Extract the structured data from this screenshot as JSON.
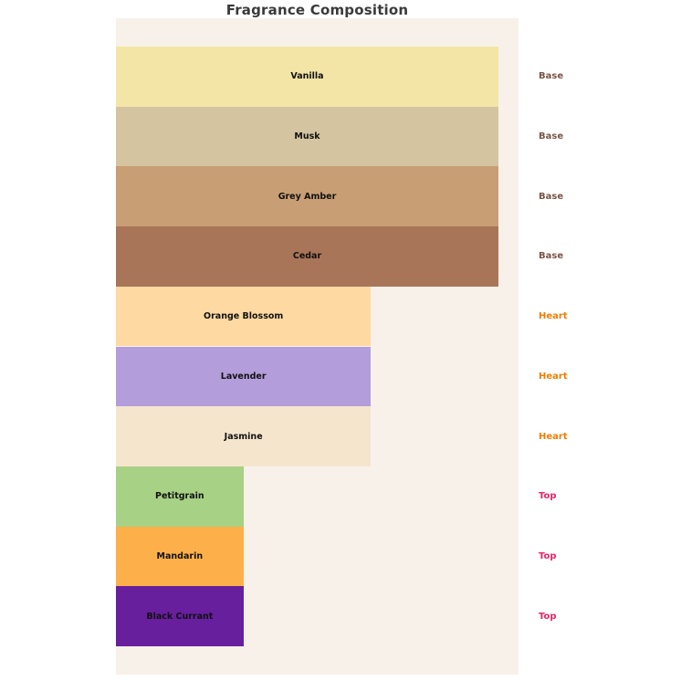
{
  "title": "Fragrance Composition",
  "colors": {
    "page_bg": "#ffffff",
    "plot_bg": "#f7f1ea",
    "title_text": "#3a3a3a",
    "bar_label_text": "#111111"
  },
  "category_colors": {
    "Base": "#795548",
    "Heart": "#f57c00",
    "Top": "#e82565"
  },
  "chart_data": {
    "type": "bar",
    "orientation": "horizontal",
    "title": "Fragrance Composition",
    "legend": "none",
    "grid": false,
    "value_axis": {
      "min": 0,
      "max": 3,
      "visible": false
    },
    "categories": [
      "Vanilla",
      "Musk",
      "Grey Amber",
      "Cedar",
      "Orange Blossom",
      "Lavender",
      "Jasmine",
      "Petitgrain",
      "Mandarin",
      "Black Currant"
    ],
    "notes": [
      {
        "label": "Vanilla",
        "category": "Base",
        "value": 3,
        "color": "#f3e5a5"
      },
      {
        "label": "Musk",
        "category": "Base",
        "value": 3,
        "color": "#d5c4a0"
      },
      {
        "label": "Grey Amber",
        "category": "Base",
        "value": 3,
        "color": "#c89e74"
      },
      {
        "label": "Cedar",
        "category": "Base",
        "value": 3,
        "color": "#a97559"
      },
      {
        "label": "Orange Blossom",
        "category": "Heart",
        "value": 2,
        "color": "#fed9a2"
      },
      {
        "label": "Lavender",
        "category": "Heart",
        "value": 2,
        "color": "#b39ddb"
      },
      {
        "label": "Jasmine",
        "category": "Heart",
        "value": 2,
        "color": "#f5e5cd"
      },
      {
        "label": "Petitgrain",
        "category": "Top",
        "value": 1,
        "color": "#a7d184"
      },
      {
        "label": "Mandarin",
        "category": "Top",
        "value": 1,
        "color": "#fdb04a"
      },
      {
        "label": "Black Currant",
        "category": "Top",
        "value": 1,
        "color": "#671f9e"
      }
    ]
  }
}
